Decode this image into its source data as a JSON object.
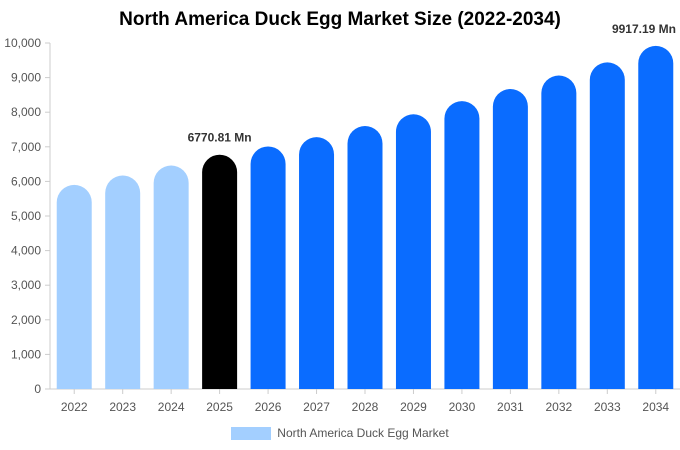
{
  "chart_data": {
    "type": "bar",
    "title": "North America Duck Egg Market Size (2022-2034)",
    "categories": [
      "2022",
      "2023",
      "2024",
      "2025",
      "2026",
      "2027",
      "2028",
      "2029",
      "2030",
      "2031",
      "2032",
      "2033",
      "2034"
    ],
    "series": [
      {
        "name": "North America Duck Egg Market",
        "values": [
          5900,
          6170,
          6460,
          6770.81,
          7010,
          7280,
          7600,
          7940,
          8320,
          8670,
          9060,
          9440,
          9917.19
        ]
      }
    ],
    "ylim": [
      0,
      10000
    ],
    "yticks": [
      "0",
      "1,000",
      "2,000",
      "3,000",
      "4,000",
      "5,000",
      "6,000",
      "7,000",
      "8,000",
      "9,000",
      "10,000"
    ],
    "annotations": [
      {
        "category": "2025",
        "text": "6770.81 Mn"
      },
      {
        "category": "2034",
        "text": "9917.19 Mn"
      }
    ],
    "bar_colors": [
      "#a3cfff",
      "#a3cfff",
      "#a3cfff",
      "#000000",
      "#0a6cff",
      "#0a6cff",
      "#0a6cff",
      "#0a6cff",
      "#0a6cff",
      "#0a6cff",
      "#0a6cff",
      "#0a6cff",
      "#0a6cff"
    ],
    "legend": {
      "label": "North America Duck Egg Market",
      "color": "#a3cfff",
      "position": "bottom-center"
    },
    "grid": false
  }
}
